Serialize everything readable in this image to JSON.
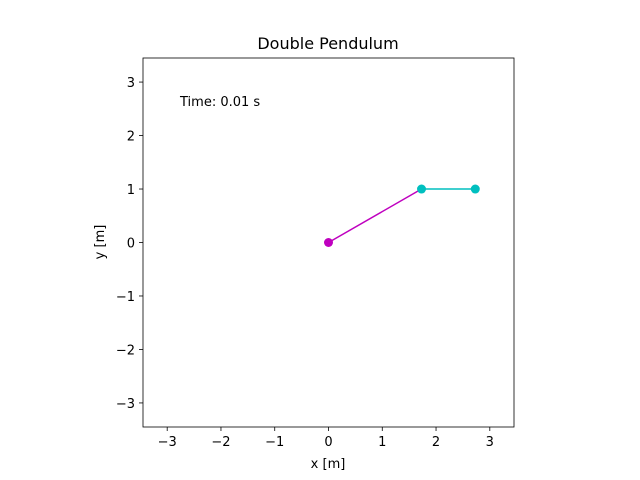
{
  "chart_data": {
    "type": "line",
    "title": "Double Pendulum",
    "xlabel": "x [m]",
    "ylabel": "y [m]",
    "xlim": [
      -3.45,
      3.45
    ],
    "ylim": [
      -3.45,
      3.45
    ],
    "xticks": [
      -3,
      -2,
      -1,
      0,
      1,
      2,
      3
    ],
    "yticks": [
      -3,
      -2,
      -1,
      0,
      1,
      2,
      3
    ],
    "grid": false,
    "annotation": "Time: 0.01 s",
    "series": [
      {
        "color": "#bf00bf",
        "points": [
          [
            0,
            0
          ],
          [
            1.73,
            1.0
          ]
        ],
        "marker_points": [
          [
            0,
            0
          ]
        ]
      },
      {
        "color": "#00bfbf",
        "points": [
          [
            1.73,
            1.0
          ],
          [
            2.73,
            1.0
          ]
        ],
        "marker_points": [
          [
            1.73,
            1.0
          ],
          [
            2.73,
            1.0
          ]
        ]
      }
    ]
  }
}
